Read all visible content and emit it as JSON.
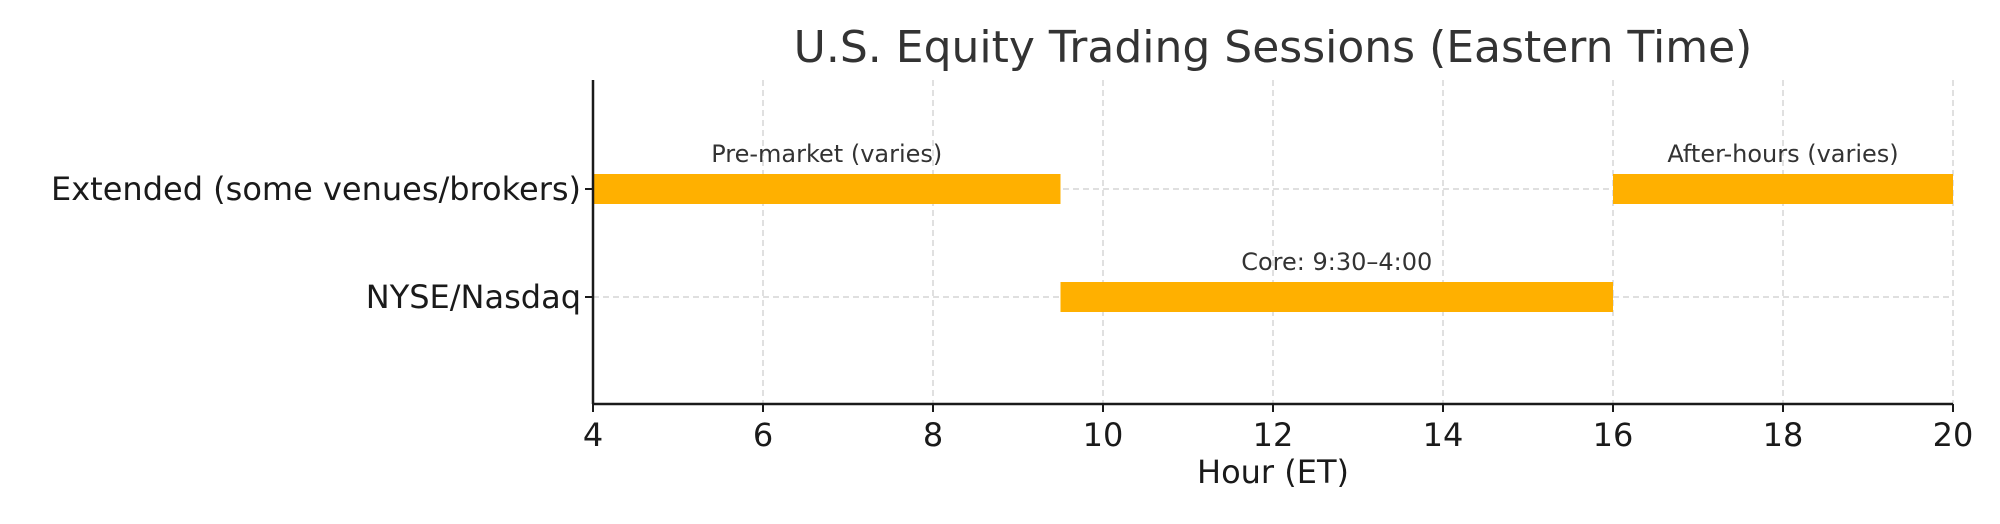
{
  "chart_data": {
    "type": "bar",
    "orientation": "horizontal-range",
    "title": "U.S. Equity Trading Sessions (Eastern Time)",
    "xlabel": "Hour (ET)",
    "ylabel": "",
    "xlim": [
      4,
      20
    ],
    "xticks": [
      4,
      6,
      8,
      10,
      12,
      14,
      16,
      18,
      20
    ],
    "categories": [
      "Extended (some venues/brokers)",
      "NYSE/Nasdaq"
    ],
    "grid": true,
    "bar_color": "#FFB000",
    "segments": [
      {
        "category": "Extended (some venues/brokers)",
        "start": 4,
        "end": 9.5,
        "label": "Pre-market (varies)"
      },
      {
        "category": "Extended (some venues/brokers)",
        "start": 16,
        "end": 20,
        "label": "After-hours (varies)"
      },
      {
        "category": "NYSE/Nasdaq",
        "start": 9.5,
        "end": 16,
        "label": "Core: 9:30–4:00"
      }
    ]
  }
}
